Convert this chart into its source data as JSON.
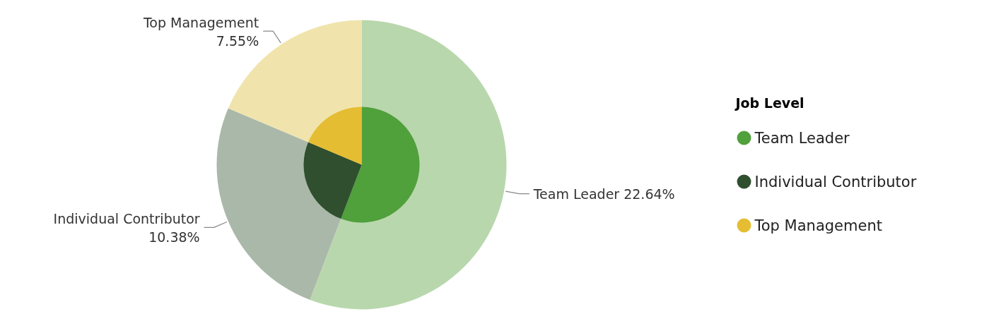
{
  "chart_data": {
    "type": "pie",
    "legend_title": "Job Level",
    "categories": [
      "Team Leader",
      "Individual Contributor",
      "Top Management"
    ],
    "series": [
      {
        "values": [
          22.64,
          10.38,
          7.55
        ],
        "colors": [
          "#b9d7ad",
          "#aab8a9",
          "#f0e4ac"
        ],
        "value_labels": [
          "22.64%",
          "10.38%",
          "7.55%"
        ]
      },
      {
        "values": [
          55.8,
          25.59,
          18.61
        ],
        "colors": [
          "#50a03c",
          "#2f4f2e",
          "#e5bd32"
        ]
      }
    ],
    "legend": "right"
  }
}
